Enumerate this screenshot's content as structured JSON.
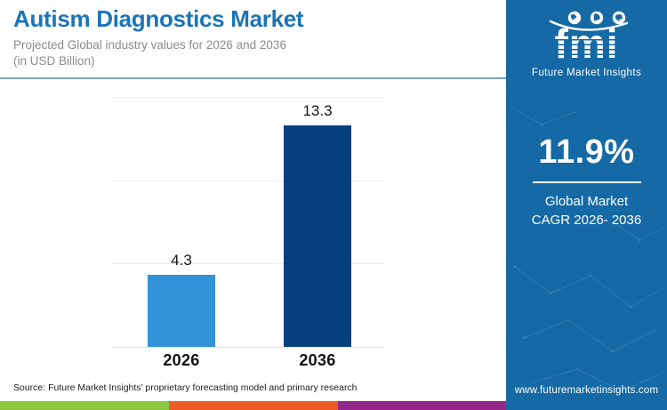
{
  "header": {
    "title": "Autism Diagnostics Market",
    "subtitle_line1": "Projected Global industry values for 2026 and 2036",
    "subtitle_line2": "(in USD Billion)"
  },
  "chart_data": {
    "type": "bar",
    "title": "Autism Diagnostics Market",
    "subtitle": "Projected Global industry values for 2026 and 2036 (in USD Billion)",
    "unit": "USD Billion",
    "categories": [
      "2026",
      "2036"
    ],
    "values": [
      4.3,
      13.3
    ],
    "bar_colors": [
      "#3293D8",
      "#05417E"
    ],
    "ylim": [
      0,
      15
    ],
    "gridlines": [
      0,
      5,
      10,
      15
    ],
    "grid": true,
    "legend": false,
    "y_axis_labels_visible": false
  },
  "sidebar": {
    "bg_color": "#1569A4",
    "logo_word": "fmi",
    "logo_caption": "Future Market Insights",
    "cagr_value": "11.9%",
    "cagr_label_line1": "Global Market",
    "cagr_label_line2": "CAGR 2026- 2036",
    "website": "www.futuremarketinsights.com"
  },
  "footer": {
    "source": "Source: Future Market Insights’ proprietary forecasting model and primary research",
    "strip_colors": [
      "#8DC63F",
      "#EF5B25",
      "#94278C"
    ]
  }
}
